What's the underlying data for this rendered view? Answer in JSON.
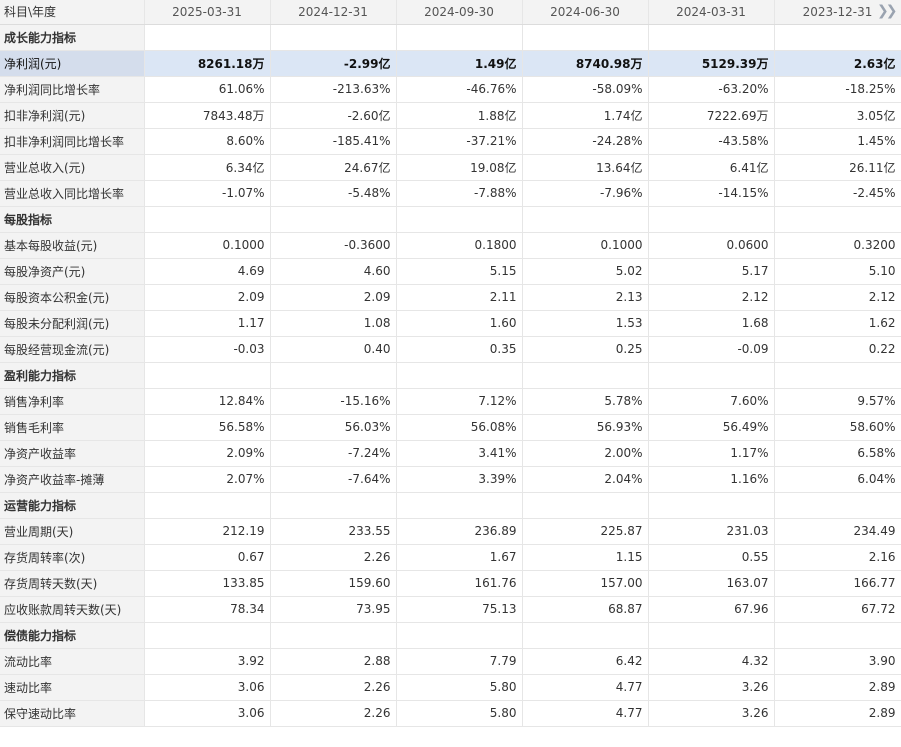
{
  "header": {
    "corner": "科目\\年度",
    "dates": [
      "2025-03-31",
      "2024-12-31",
      "2024-09-30",
      "2024-06-30",
      "2024-03-31",
      "2023-12-31"
    ],
    "more_icon": "double-chevron-right-icon"
  },
  "rows": [
    {
      "type": "section",
      "label": "成长能力指标"
    },
    {
      "type": "data",
      "label": "净利润(元)",
      "highlight": true,
      "values": [
        "8261.18万",
        "-2.99亿",
        "1.49亿",
        "8740.98万",
        "5129.39万",
        "2.63亿"
      ]
    },
    {
      "type": "data",
      "label": "净利润同比增长率",
      "values": [
        "61.06%",
        "-213.63%",
        "-46.76%",
        "-58.09%",
        "-63.20%",
        "-18.25%"
      ]
    },
    {
      "type": "data",
      "label": "扣非净利润(元)",
      "values": [
        "7843.48万",
        "-2.60亿",
        "1.88亿",
        "1.74亿",
        "7222.69万",
        "3.05亿"
      ]
    },
    {
      "type": "data",
      "label": "扣非净利润同比增长率",
      "values": [
        "8.60%",
        "-185.41%",
        "-37.21%",
        "-24.28%",
        "-43.58%",
        "1.45%"
      ]
    },
    {
      "type": "data",
      "label": "营业总收入(元)",
      "values": [
        "6.34亿",
        "24.67亿",
        "19.08亿",
        "13.64亿",
        "6.41亿",
        "26.11亿"
      ]
    },
    {
      "type": "data",
      "label": "营业总收入同比增长率",
      "values": [
        "-1.07%",
        "-5.48%",
        "-7.88%",
        "-7.96%",
        "-14.15%",
        "-2.45%"
      ]
    },
    {
      "type": "section",
      "label": "每股指标"
    },
    {
      "type": "data",
      "label": "基本每股收益(元)",
      "values": [
        "0.1000",
        "-0.3600",
        "0.1800",
        "0.1000",
        "0.0600",
        "0.3200"
      ]
    },
    {
      "type": "data",
      "label": "每股净资产(元)",
      "values": [
        "4.69",
        "4.60",
        "5.15",
        "5.02",
        "5.17",
        "5.10"
      ]
    },
    {
      "type": "data",
      "label": "每股资本公积金(元)",
      "values": [
        "2.09",
        "2.09",
        "2.11",
        "2.13",
        "2.12",
        "2.12"
      ]
    },
    {
      "type": "data",
      "label": "每股未分配利润(元)",
      "values": [
        "1.17",
        "1.08",
        "1.60",
        "1.53",
        "1.68",
        "1.62"
      ]
    },
    {
      "type": "data",
      "label": "每股经营现金流(元)",
      "values": [
        "-0.03",
        "0.40",
        "0.35",
        "0.25",
        "-0.09",
        "0.22"
      ]
    },
    {
      "type": "section",
      "label": "盈利能力指标"
    },
    {
      "type": "data",
      "label": "销售净利率",
      "values": [
        "12.84%",
        "-15.16%",
        "7.12%",
        "5.78%",
        "7.60%",
        "9.57%"
      ]
    },
    {
      "type": "data",
      "label": "销售毛利率",
      "values": [
        "56.58%",
        "56.03%",
        "56.08%",
        "56.93%",
        "56.49%",
        "58.60%"
      ]
    },
    {
      "type": "data",
      "label": "净资产收益率",
      "values": [
        "2.09%",
        "-7.24%",
        "3.41%",
        "2.00%",
        "1.17%",
        "6.58%"
      ]
    },
    {
      "type": "data",
      "label": "净资产收益率-摊薄",
      "values": [
        "2.07%",
        "-7.64%",
        "3.39%",
        "2.04%",
        "1.16%",
        "6.04%"
      ]
    },
    {
      "type": "section",
      "label": "运营能力指标"
    },
    {
      "type": "data",
      "label": "营业周期(天)",
      "values": [
        "212.19",
        "233.55",
        "236.89",
        "225.87",
        "231.03",
        "234.49"
      ]
    },
    {
      "type": "data",
      "label": "存货周转率(次)",
      "values": [
        "0.67",
        "2.26",
        "1.67",
        "1.15",
        "0.55",
        "2.16"
      ]
    },
    {
      "type": "data",
      "label": "存货周转天数(天)",
      "values": [
        "133.85",
        "159.60",
        "161.76",
        "157.00",
        "163.07",
        "166.77"
      ]
    },
    {
      "type": "data",
      "label": "应收账款周转天数(天)",
      "values": [
        "78.34",
        "73.95",
        "75.13",
        "68.87",
        "67.96",
        "67.72"
      ]
    },
    {
      "type": "section",
      "label": "偿债能力指标"
    },
    {
      "type": "data",
      "label": "流动比率",
      "values": [
        "3.92",
        "2.88",
        "7.79",
        "6.42",
        "4.32",
        "3.90"
      ]
    },
    {
      "type": "data",
      "label": "速动比率",
      "values": [
        "3.06",
        "2.26",
        "5.80",
        "4.77",
        "3.26",
        "2.89"
      ]
    },
    {
      "type": "data",
      "label": "保守速动比率",
      "values": [
        "3.06",
        "2.26",
        "5.80",
        "4.77",
        "3.26",
        "2.89"
      ]
    }
  ]
}
